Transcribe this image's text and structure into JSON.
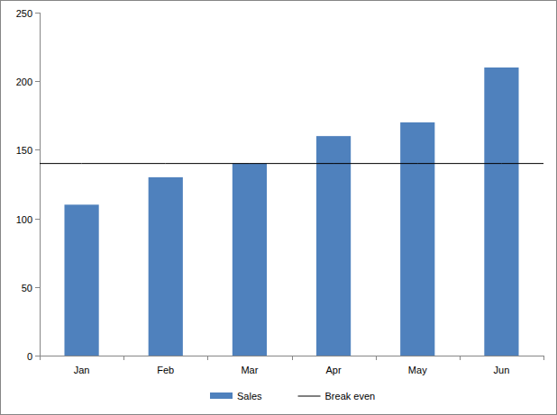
{
  "chart_data": {
    "type": "bar",
    "categories": [
      "Jan",
      "Feb",
      "Mar",
      "Apr",
      "May",
      "Jun"
    ],
    "series": [
      {
        "name": "Sales",
        "type": "bar",
        "color": "#4f81bd",
        "values": [
          110,
          130,
          140,
          160,
          170,
          210
        ]
      },
      {
        "name": "Break even",
        "type": "line",
        "color": "#000000",
        "values": [
          140,
          140,
          140,
          140,
          140,
          140
        ]
      }
    ],
    "ylim": [
      0,
      250
    ],
    "yticks": [
      0,
      50,
      100,
      150,
      200,
      250
    ],
    "grid": false,
    "legend": "bottom"
  }
}
